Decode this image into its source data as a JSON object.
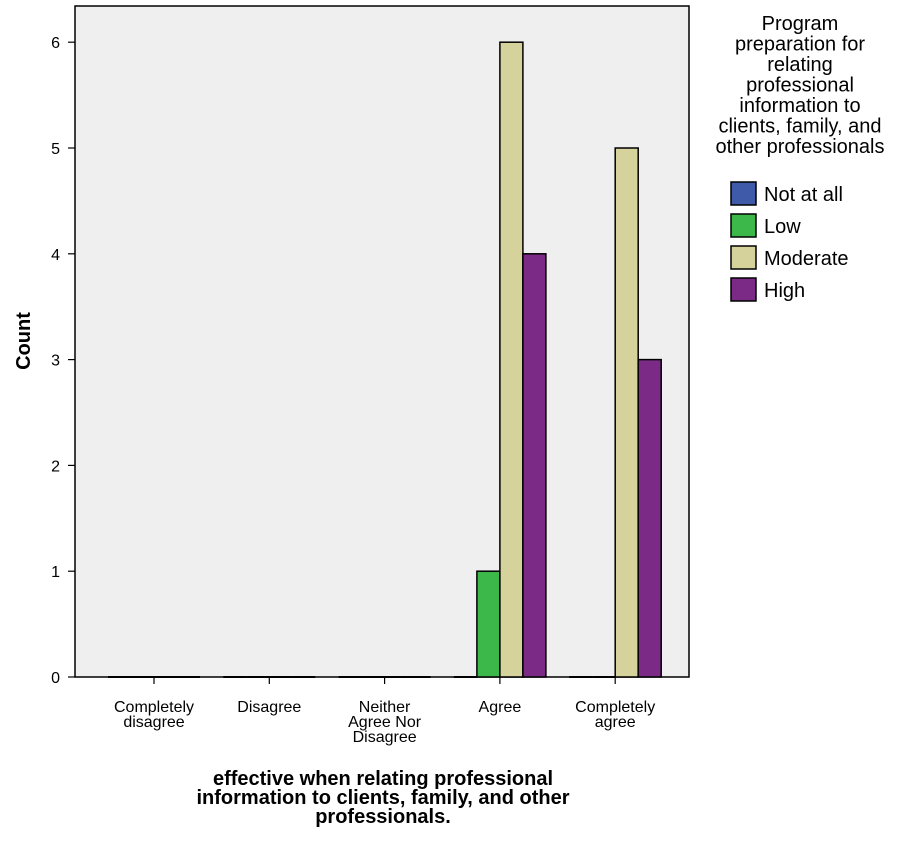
{
  "chart_data": {
    "type": "bar",
    "categories": [
      [
        "Completely",
        "disagree"
      ],
      [
        "Disagree"
      ],
      [
        "Neither",
        "Agree Nor",
        "Disagree"
      ],
      [
        "Agree"
      ],
      [
        "Completely",
        "agree"
      ]
    ],
    "series": [
      {
        "name": "Not at all",
        "color": "#3f5aa8",
        "values": [
          0,
          0,
          0,
          0,
          0
        ]
      },
      {
        "name": "Low",
        "color": "#3cb84a",
        "values": [
          0,
          0,
          0,
          1,
          0
        ]
      },
      {
        "name": "Moderate",
        "color": "#d6d29c",
        "values": [
          0,
          0,
          0,
          6,
          5
        ]
      },
      {
        "name": "High",
        "color": "#7b2b86",
        "values": [
          0,
          0,
          0,
          4,
          3
        ]
      }
    ],
    "ylabel": "Count",
    "xlabel": [
      "effective when relating professional",
      "information to clients, family, and other",
      "professionals."
    ],
    "legend_title": [
      "Program",
      "preparation for",
      "relating",
      "professional",
      "information to",
      "clients, family, and",
      "other professionals"
    ],
    "y_ticks": [
      0,
      1,
      2,
      3,
      4,
      5,
      6
    ],
    "ylim": [
      0,
      6.35
    ],
    "legend_position": "top-right",
    "plot_background": "#efefef",
    "grid": false
  }
}
